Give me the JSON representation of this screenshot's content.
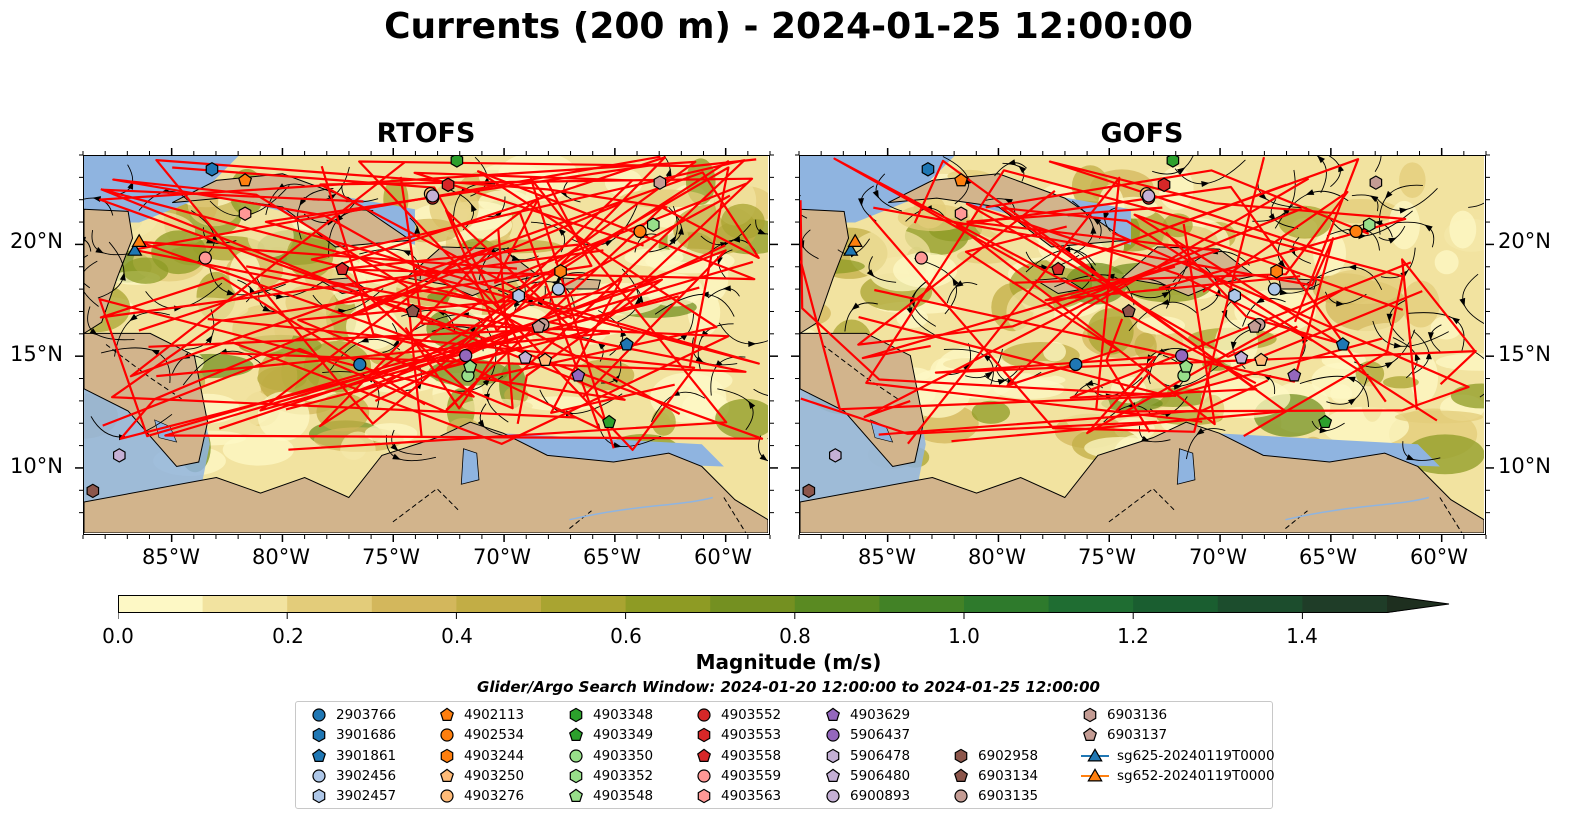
{
  "title": "Currents (200 m) - 2024-01-25 12:00:00",
  "panels": [
    {
      "title": "RTOFS"
    },
    {
      "title": "GOFS"
    }
  ],
  "map": {
    "lon_range": [
      -89,
      -58
    ],
    "lat_range": [
      7,
      24
    ],
    "x_ticks": [
      "85°W",
      "80°W",
      "75°W",
      "70°W",
      "65°W",
      "60°W"
    ],
    "y_ticks": [
      "20°N",
      "15°N",
      "10°N"
    ],
    "colors": {
      "land": "#d2b48c",
      "shallow_water": "#8fb4e0",
      "tracks": "#ff0000",
      "streamlines": "#000000"
    }
  },
  "colorbar": {
    "label": "Magnitude (m/s)",
    "ticks": [
      "0.0",
      "0.2",
      "0.4",
      "0.6",
      "0.8",
      "1.0",
      "1.2",
      "1.4"
    ],
    "range": [
      0,
      1.5
    ],
    "extend": "max",
    "colors": [
      "#fdf8c5",
      "#f2e3a0",
      "#e3cc7a",
      "#d3b75c",
      "#c2ad45",
      "#a9a431",
      "#8e9b24",
      "#749021",
      "#5a8a22",
      "#428226",
      "#2e7a2c",
      "#1f6d32",
      "#1a5e30",
      "#1c4d2d",
      "#1f3d28",
      "#1e2f1f"
    ]
  },
  "search_window": "Glider/Argo Search Window: 2024-01-20 12:00:00 to 2024-01-25 12:00:00",
  "legend": [
    {
      "label": "2903766",
      "color": "#1f77b4",
      "marker": "circle"
    },
    {
      "label": "3901686",
      "color": "#1f77b4",
      "marker": "hexagon"
    },
    {
      "label": "3901861",
      "color": "#1f77b4",
      "marker": "pentagon"
    },
    {
      "label": "3902456",
      "color": "#aec7e8",
      "marker": "circle"
    },
    {
      "label": "3902457",
      "color": "#aec7e8",
      "marker": "hexagon"
    },
    {
      "label": "4902113",
      "color": "#ff7f0e",
      "marker": "pentagon"
    },
    {
      "label": "4902534",
      "color": "#ff7f0e",
      "marker": "circle"
    },
    {
      "label": "4903244",
      "color": "#ff7f0e",
      "marker": "hexagon"
    },
    {
      "label": "4903250",
      "color": "#ffbb78",
      "marker": "pentagon"
    },
    {
      "label": "4903276",
      "color": "#ffbb78",
      "marker": "circle"
    },
    {
      "label": "4903348",
      "color": "#2ca02c",
      "marker": "hexagon"
    },
    {
      "label": "4903349",
      "color": "#2ca02c",
      "marker": "pentagon"
    },
    {
      "label": "4903350",
      "color": "#98df8a",
      "marker": "circle"
    },
    {
      "label": "4903352",
      "color": "#98df8a",
      "marker": "hexagon"
    },
    {
      "label": "4903548",
      "color": "#98df8a",
      "marker": "pentagon"
    },
    {
      "label": "4903552",
      "color": "#d62728",
      "marker": "circle"
    },
    {
      "label": "4903553",
      "color": "#d62728",
      "marker": "hexagon"
    },
    {
      "label": "4903558",
      "color": "#d62728",
      "marker": "pentagon"
    },
    {
      "label": "4903559",
      "color": "#ff9896",
      "marker": "circle"
    },
    {
      "label": "4903563",
      "color": "#ff9896",
      "marker": "hexagon"
    },
    {
      "label": "4903629",
      "color": "#9467bd",
      "marker": "pentagon"
    },
    {
      "label": "5906437",
      "color": "#9467bd",
      "marker": "circle"
    },
    {
      "label": "5906478",
      "color": "#c5b0d5",
      "marker": "hexagon"
    },
    {
      "label": "5906480",
      "color": "#c5b0d5",
      "marker": "pentagon"
    },
    {
      "label": "6900893",
      "color": "#c5b0d5",
      "marker": "circle"
    },
    {
      "label": "6902958",
      "color": "#8c564b",
      "marker": "hexagon"
    },
    {
      "label": "6903134",
      "color": "#8c564b",
      "marker": "pentagon"
    },
    {
      "label": "6903135",
      "color": "#c49c94",
      "marker": "circle"
    },
    {
      "label": "6903136",
      "color": "#c49c94",
      "marker": "hexagon"
    },
    {
      "label": "6903137",
      "color": "#c49c94",
      "marker": "pentagon"
    },
    {
      "label": "sg625-20240119T0000",
      "color": "#1f77b4",
      "marker": "triangle-line"
    },
    {
      "label": "sg652-20240119T0000",
      "color": "#ff7f0e",
      "marker": "triangle-line"
    }
  ],
  "floats": [
    {
      "id": "2903766",
      "lon": -76.5,
      "lat": 14.6
    },
    {
      "id": "3901686",
      "lon": -83.2,
      "lat": 23.4
    },
    {
      "id": "3901861",
      "lon": -64.4,
      "lat": 15.5
    },
    {
      "id": "3902456",
      "lon": -67.5,
      "lat": 18.0
    },
    {
      "id": "3902457",
      "lon": -69.3,
      "lat": 17.7
    },
    {
      "id": "4902113",
      "lon": -81.7,
      "lat": 22.9
    },
    {
      "id": "4902534",
      "lon": -63.8,
      "lat": 20.6
    },
    {
      "id": "4903244",
      "lon": -67.4,
      "lat": 18.8
    },
    {
      "id": "4903250",
      "lon": -68.1,
      "lat": 14.8
    },
    {
      "id": "4903276",
      "lon": -73.3,
      "lat": 22.3
    },
    {
      "id": "4903348",
      "lon": -72.1,
      "lat": 23.8
    },
    {
      "id": "4903349",
      "lon": -65.2,
      "lat": 12.0
    },
    {
      "id": "4903350",
      "lon": -71.6,
      "lat": 14.1
    },
    {
      "id": "4903352",
      "lon": -63.2,
      "lat": 20.9
    },
    {
      "id": "4903548",
      "lon": -71.5,
      "lat": 14.5
    },
    {
      "id": "4903552",
      "lon": -73.2,
      "lat": 22.1
    },
    {
      "id": "4903553",
      "lon": -72.5,
      "lat": 22.7
    },
    {
      "id": "4903558",
      "lon": -77.3,
      "lat": 18.9
    },
    {
      "id": "4903559",
      "lon": -83.5,
      "lat": 19.4
    },
    {
      "id": "4903563",
      "lon": -81.7,
      "lat": 21.4
    },
    {
      "id": "4903629",
      "lon": -66.6,
      "lat": 14.1
    },
    {
      "id": "5906437",
      "lon": -71.7,
      "lat": 15.0
    },
    {
      "id": "5906478",
      "lon": -87.4,
      "lat": 10.5
    },
    {
      "id": "5906480",
      "lon": -69.0,
      "lat": 14.9
    },
    {
      "id": "6900893",
      "lon": -73.2,
      "lat": 22.2
    },
    {
      "id": "6902958",
      "lon": -88.6,
      "lat": 8.9
    },
    {
      "id": "6903134",
      "lon": -74.1,
      "lat": 17.0
    },
    {
      "id": "6903135",
      "lon": -68.2,
      "lat": 16.4
    },
    {
      "id": "6903136",
      "lon": -62.9,
      "lat": 22.8
    },
    {
      "id": "6903137",
      "lon": -68.4,
      "lat": 16.3
    }
  ],
  "gliders": [
    {
      "id": "sg625-20240119T0000",
      "lon": -86.7,
      "lat": 19.7
    },
    {
      "id": "sg652-20240119T0000",
      "lon": -86.5,
      "lat": 20.1
    }
  ]
}
